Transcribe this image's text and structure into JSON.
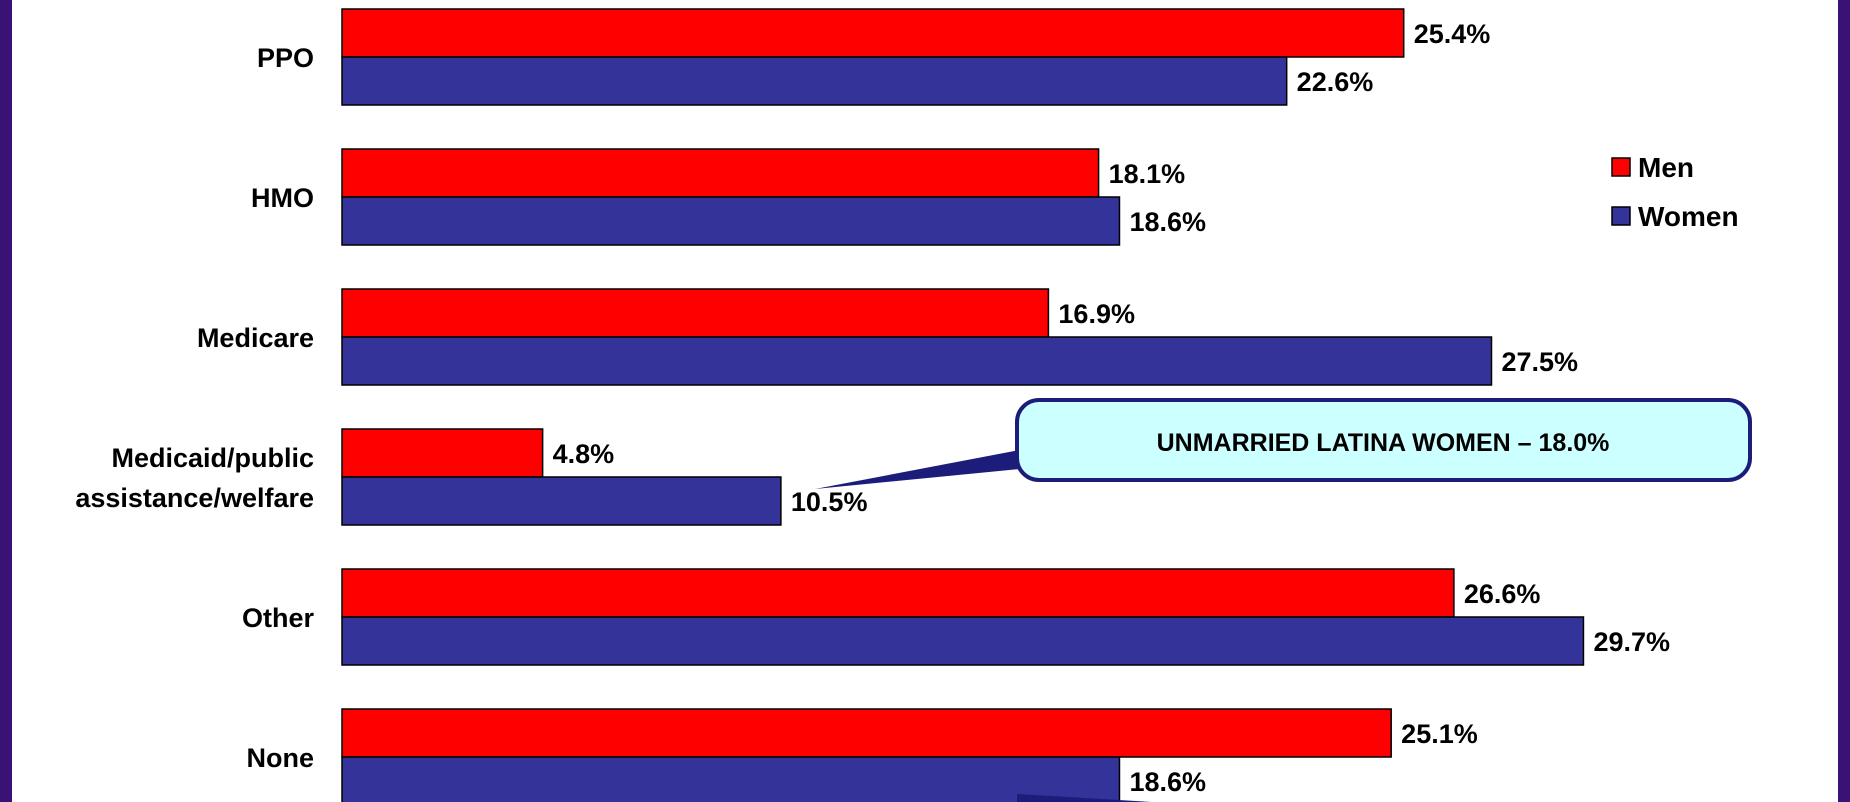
{
  "chart_data": {
    "type": "bar",
    "orientation": "horizontal",
    "categories": [
      "PPO",
      "HMO",
      "Medicare",
      "Medicaid/public\nassistance/welfare",
      "Other",
      "None"
    ],
    "series": [
      {
        "name": "Men",
        "values": [
          25.4,
          18.1,
          16.9,
          4.8,
          26.6,
          25.1
        ],
        "labels": [
          "25.4%",
          "18.1%",
          "16.9%",
          "4.8%",
          "26.6%",
          "25.1%"
        ]
      },
      {
        "name": "Women",
        "values": [
          22.6,
          18.6,
          27.5,
          10.5,
          29.7,
          18.6
        ],
        "labels": [
          "22.6%",
          "18.6%",
          "27.5%",
          "10.5%",
          "29.7%",
          "18.6%"
        ]
      }
    ],
    "xlim": [
      0,
      30
    ],
    "grid": false,
    "legend_position": "right",
    "annotations": [
      {
        "text": "UNMARRIED LATINA WOMEN – 18.0%",
        "category": "Medicaid/public\nassistance/welfare",
        "series": "Women"
      }
    ]
  },
  "colors": {
    "Men": "#ff0000",
    "Women": "#333399",
    "frame": "#3a1275",
    "callout_fill": "#ccffff",
    "callout_border": "#1c1c7a"
  }
}
